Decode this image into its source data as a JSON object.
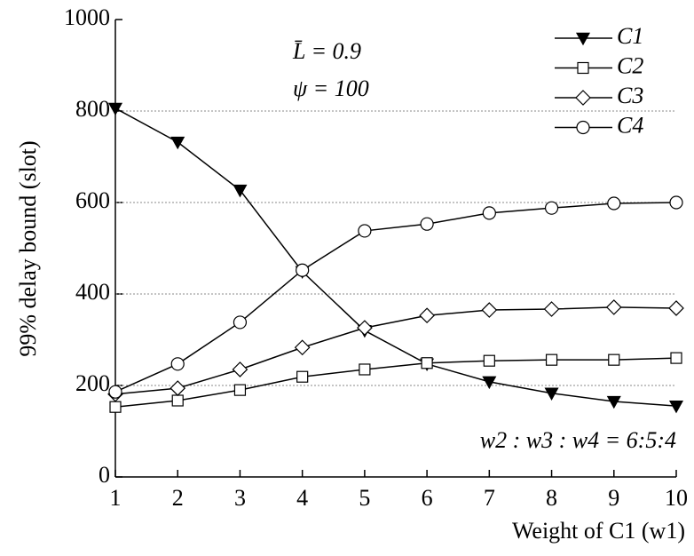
{
  "chart_data": {
    "type": "line",
    "y_label": "99% delay bound (slot)",
    "x_label": "Weight of C1 (w1)",
    "annotations": [
      "L̄ = 0.9",
      "ψ = 100",
      "w2 : w3 : w4 = 6:5:4"
    ],
    "x": [
      1,
      2,
      3,
      4,
      5,
      6,
      7,
      8,
      9,
      10
    ],
    "series": [
      {
        "name": "C1",
        "color": "#000000",
        "marker": "triangle-down",
        "values": [
          806,
          732,
          627,
          449,
          320,
          247,
          208,
          183,
          165,
          155
        ]
      },
      {
        "name": "C2",
        "color": "#000000",
        "marker": "square",
        "values": [
          153,
          167,
          190,
          219,
          235,
          249,
          254,
          256,
          256,
          260
        ]
      },
      {
        "name": "C3",
        "color": "#000000",
        "marker": "diamond",
        "values": [
          181,
          194,
          235,
          283,
          326,
          353,
          365,
          367,
          371,
          369
        ]
      },
      {
        "name": "C4",
        "color": "#000000",
        "marker": "circle",
        "values": [
          186,
          247,
          338,
          452,
          538,
          553,
          577,
          588,
          598,
          600
        ]
      }
    ],
    "xlim": [
      1,
      10
    ],
    "xticks": [
      1,
      2,
      3,
      4,
      5,
      6,
      7,
      8,
      9,
      10
    ],
    "ylim": [
      0,
      1000
    ],
    "yticks": [
      0,
      200,
      400,
      600,
      800,
      1000
    ],
    "grid": true,
    "legend": "upper-right"
  }
}
